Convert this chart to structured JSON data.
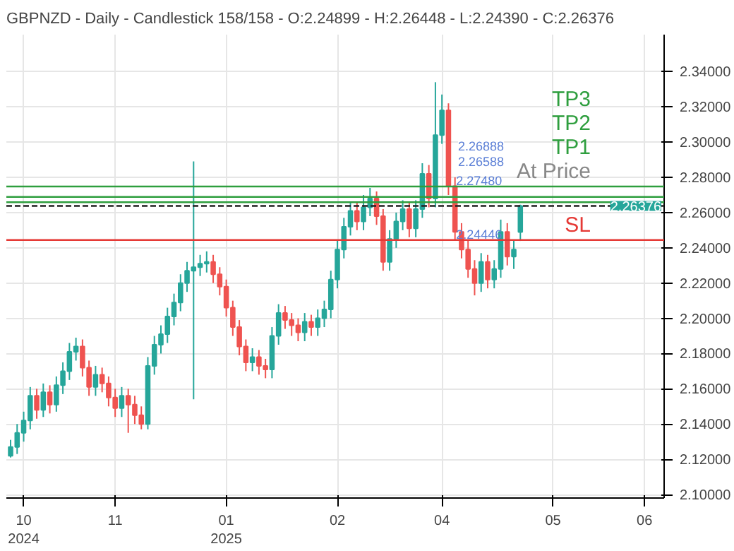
{
  "chart_data": {
    "type": "candlestick",
    "title": "GBPNZD - Daily - Candlestick   158/158 - O:2.24899 - H:2.26448 - L:2.24390 - C:2.26376",
    "categories": [
      null,
      null,
      "10\n2024",
      null,
      null,
      null,
      null,
      null,
      null,
      null,
      null,
      null,
      null,
      null,
      null,
      null,
      "11",
      null,
      null,
      null,
      null,
      null,
      null,
      null,
      null,
      null,
      null,
      null,
      null,
      null,
      null,
      null,
      null,
      "01\n2025",
      null,
      null,
      null,
      null,
      null,
      null,
      null,
      null,
      null,
      null,
      null,
      null,
      null,
      null,
      null,
      null,
      "02",
      null,
      null,
      null,
      null,
      null,
      null,
      null,
      null,
      null,
      null,
      null,
      null,
      null,
      null,
      null,
      "04",
      null,
      null,
      null,
      null,
      null,
      null,
      null,
      null,
      null,
      null,
      null,
      null,
      null,
      null,
      null,
      null,
      "05",
      null,
      null,
      null,
      null,
      null,
      null,
      null,
      null,
      null,
      null,
      null,
      null,
      null,
      "06",
      null,
      null
    ],
    "ohlc": [
      [
        2.122,
        2.131,
        2.121,
        2.127
      ],
      [
        2.127,
        2.14,
        2.123,
        2.135
      ],
      [
        2.135,
        2.147,
        2.13,
        2.142
      ],
      [
        2.142,
        2.161,
        2.137,
        2.156
      ],
      [
        2.156,
        2.16,
        2.143,
        2.148
      ],
      [
        2.148,
        2.163,
        2.144,
        2.158
      ],
      [
        2.158,
        2.162,
        2.146,
        2.151
      ],
      [
        2.151,
        2.167,
        2.147,
        2.162
      ],
      [
        2.162,
        2.175,
        2.157,
        2.17
      ],
      [
        2.17,
        2.186,
        2.165,
        2.181
      ],
      [
        2.181,
        2.189,
        2.176,
        2.184
      ],
      [
        2.184,
        2.188,
        2.167,
        2.172
      ],
      [
        2.172,
        2.176,
        2.156,
        2.161
      ],
      [
        2.161,
        2.173,
        2.156,
        2.168
      ],
      [
        2.168,
        2.172,
        2.158,
        2.163
      ],
      [
        2.163,
        2.167,
        2.15,
        2.155
      ],
      [
        2.155,
        2.16,
        2.144,
        2.149
      ],
      [
        2.149,
        2.161,
        2.144,
        2.156
      ],
      [
        2.156,
        2.16,
        2.135,
        2.151
      ],
      [
        2.151,
        2.156,
        2.14,
        2.145
      ],
      [
        2.145,
        2.15,
        2.137,
        2.14
      ],
      [
        2.14,
        2.178,
        2.137,
        2.173
      ],
      [
        2.173,
        2.19,
        2.168,
        2.185
      ],
      [
        2.185,
        2.196,
        2.18,
        2.191
      ],
      [
        2.191,
        2.206,
        2.186,
        2.201
      ],
      [
        2.201,
        2.214,
        2.196,
        2.209
      ],
      [
        2.209,
        2.225,
        2.204,
        2.22
      ],
      [
        2.22,
        2.232,
        2.215,
        2.227
      ],
      [
        2.227,
        2.289,
        2.154,
        2.229
      ],
      [
        2.229,
        2.236,
        2.224,
        2.231
      ],
      [
        2.231,
        2.238,
        2.226,
        2.232
      ],
      [
        2.232,
        2.236,
        2.22,
        2.225
      ],
      [
        2.225,
        2.229,
        2.213,
        2.218
      ],
      [
        2.218,
        2.222,
        2.201,
        2.206
      ],
      [
        2.206,
        2.21,
        2.19,
        2.195
      ],
      [
        2.195,
        2.199,
        2.179,
        2.184
      ],
      [
        2.184,
        2.188,
        2.17,
        2.175
      ],
      [
        2.175,
        2.183,
        2.17,
        2.178
      ],
      [
        2.178,
        2.182,
        2.168,
        2.173
      ],
      [
        2.173,
        2.177,
        2.166,
        2.171
      ],
      [
        2.171,
        2.195,
        2.166,
        2.19
      ],
      [
        2.19,
        2.208,
        2.185,
        2.203
      ],
      [
        2.203,
        2.207,
        2.194,
        2.199
      ],
      [
        2.199,
        2.203,
        2.19,
        2.196
      ],
      [
        2.196,
        2.2,
        2.187,
        2.192
      ],
      [
        2.192,
        2.203,
        2.187,
        2.198
      ],
      [
        2.198,
        2.202,
        2.19,
        2.195
      ],
      [
        2.195,
        2.205,
        2.19,
        2.2
      ],
      [
        2.2,
        2.21,
        2.195,
        2.205
      ],
      [
        2.205,
        2.227,
        2.2,
        2.222
      ],
      [
        2.222,
        2.244,
        2.217,
        2.239
      ],
      [
        2.239,
        2.257,
        2.234,
        2.252
      ],
      [
        2.252,
        2.266,
        2.247,
        2.261
      ],
      [
        2.261,
        2.266,
        2.25,
        2.255
      ],
      [
        2.255,
        2.27,
        2.25,
        2.263
      ],
      [
        2.263,
        2.274,
        2.258,
        2.268
      ],
      [
        2.268,
        2.272,
        2.253,
        2.258
      ],
      [
        2.258,
        2.262,
        2.227,
        2.232
      ],
      [
        2.232,
        2.25,
        2.227,
        2.245
      ],
      [
        2.245,
        2.26,
        2.24,
        2.255
      ],
      [
        2.255,
        2.267,
        2.25,
        2.262
      ],
      [
        2.262,
        2.266,
        2.246,
        2.251
      ],
      [
        2.251,
        2.267,
        2.246,
        2.262
      ],
      [
        2.262,
        2.288,
        2.257,
        2.282
      ],
      [
        2.282,
        2.287,
        2.263,
        2.268
      ],
      [
        2.268,
        2.334,
        2.263,
        2.304
      ],
      [
        2.304,
        2.327,
        2.299,
        2.318
      ],
      [
        2.318,
        2.322,
        2.27,
        2.275
      ],
      [
        2.275,
        2.28,
        2.244,
        2.249
      ],
      [
        2.249,
        2.254,
        2.234,
        2.239
      ],
      [
        2.239,
        2.244,
        2.223,
        2.228
      ],
      [
        2.228,
        2.233,
        2.213,
        2.22
      ],
      [
        2.22,
        2.237,
        2.215,
        2.232
      ],
      [
        2.232,
        2.236,
        2.217,
        2.222
      ],
      [
        2.222,
        2.233,
        2.217,
        2.228
      ],
      [
        2.228,
        2.256,
        2.223,
        2.249
      ],
      [
        2.249,
        2.254,
        2.23,
        2.235
      ],
      [
        2.235,
        2.244,
        2.228,
        2.239
      ],
      [
        2.24899,
        2.26448,
        2.2439,
        2.26376
      ],
      null,
      null,
      null,
      null,
      null,
      null,
      null,
      null,
      null,
      null,
      null,
      null,
      null,
      null,
      null,
      null,
      null,
      null,
      null,
      null,
      null
    ],
    "colors": [
      "#26a69a",
      "#26a69a",
      "#26a69a",
      "#26a69a",
      "#ef5350",
      "#26a69a",
      "#ef5350",
      "#26a69a",
      "#26a69a",
      "#26a69a",
      "#26a69a",
      "#ef5350",
      "#ef5350",
      "#26a69a",
      "#ef5350",
      "#ef5350",
      "#ef5350",
      "#26a69a",
      "#ef5350",
      "#ef5350",
      "#ef5350",
      "#26a69a",
      "#26a69a",
      "#26a69a",
      "#26a69a",
      "#26a69a",
      "#26a69a",
      "#26a69a",
      "#26a69a",
      "#26a69a",
      "#26a69a",
      "#ef5350",
      "#ef5350",
      "#ef5350",
      "#ef5350",
      "#ef5350",
      "#ef5350",
      "#26a69a",
      "#ef5350",
      "#ef5350",
      "#26a69a",
      "#26a69a",
      "#ef5350",
      "#ef5350",
      "#ef5350",
      "#26a69a",
      "#ef5350",
      "#26a69a",
      "#26a69a",
      "#26a69a",
      "#26a69a",
      "#26a69a",
      "#26a69a",
      "#ef5350",
      "#26a69a",
      "#26a69a",
      "#ef5350",
      "#ef5350",
      "#26a69a",
      "#26a69a",
      "#26a69a",
      "#ef5350",
      "#26a69a",
      "#26a69a",
      "#ef5350",
      "#26a69a",
      "#26a69a",
      "#ef5350",
      "#ef5350",
      "#ef5350",
      "#ef5350",
      "#ef5350",
      "#26a69a",
      "#ef5350",
      "#26a69a",
      "#26a69a",
      "#ef5350",
      "#26a69a",
      "#26a69a",
      null,
      null,
      null,
      null,
      null,
      null,
      null,
      null,
      null,
      null,
      null,
      null,
      null,
      null,
      null,
      null,
      null,
      null,
      null,
      null,
      null
    ],
    "ylim": [
      2.098,
      2.361
    ],
    "yticks": [
      {
        "value": 2.1,
        "label": "2.10000"
      },
      {
        "value": 2.12,
        "label": "2.12000"
      },
      {
        "value": 2.14,
        "label": "2.14000"
      },
      {
        "value": 2.16,
        "label": "2.16000"
      },
      {
        "value": 2.18,
        "label": "2.18000"
      },
      {
        "value": 2.2,
        "label": "2.20000"
      },
      {
        "value": 2.22,
        "label": "2.22000"
      },
      {
        "value": 2.24,
        "label": "2.24000"
      },
      {
        "value": 2.26,
        "label": "2.26000"
      },
      {
        "value": 2.28,
        "label": "2.28000"
      },
      {
        "value": 2.3,
        "label": "2.30000"
      },
      {
        "value": 2.32,
        "label": "2.32000"
      },
      {
        "value": 2.34,
        "label": "2.34000"
      }
    ],
    "ref_lines": [
      {
        "axis": "y",
        "value": 2.2748,
        "label": "TP3",
        "color": "#2e9e3e"
      },
      {
        "axis": "y",
        "value": 2.26888,
        "label": "TP2",
        "color": "#2e9e3e"
      },
      {
        "axis": "y",
        "value": 2.26588,
        "label": "TP1",
        "color": "#2e9e3e"
      },
      {
        "axis": "y",
        "value": 2.26376,
        "label": "At Price",
        "color": "#222222",
        "line_style": "dashed"
      },
      {
        "axis": "y",
        "value": 2.24446,
        "label": "SL",
        "color": "#e53935"
      }
    ],
    "annotations": [
      {
        "text": "2.27480",
        "x": "04",
        "y": 2.2748
      },
      "2.26888",
      "2.26588",
      {
        "text": "2.24446",
        "x": "04",
        "y": 2.24446
      },
      {
        "text": "2.26376",
        "y": 2.26376
      }
    ],
    "grid": true
  }
}
